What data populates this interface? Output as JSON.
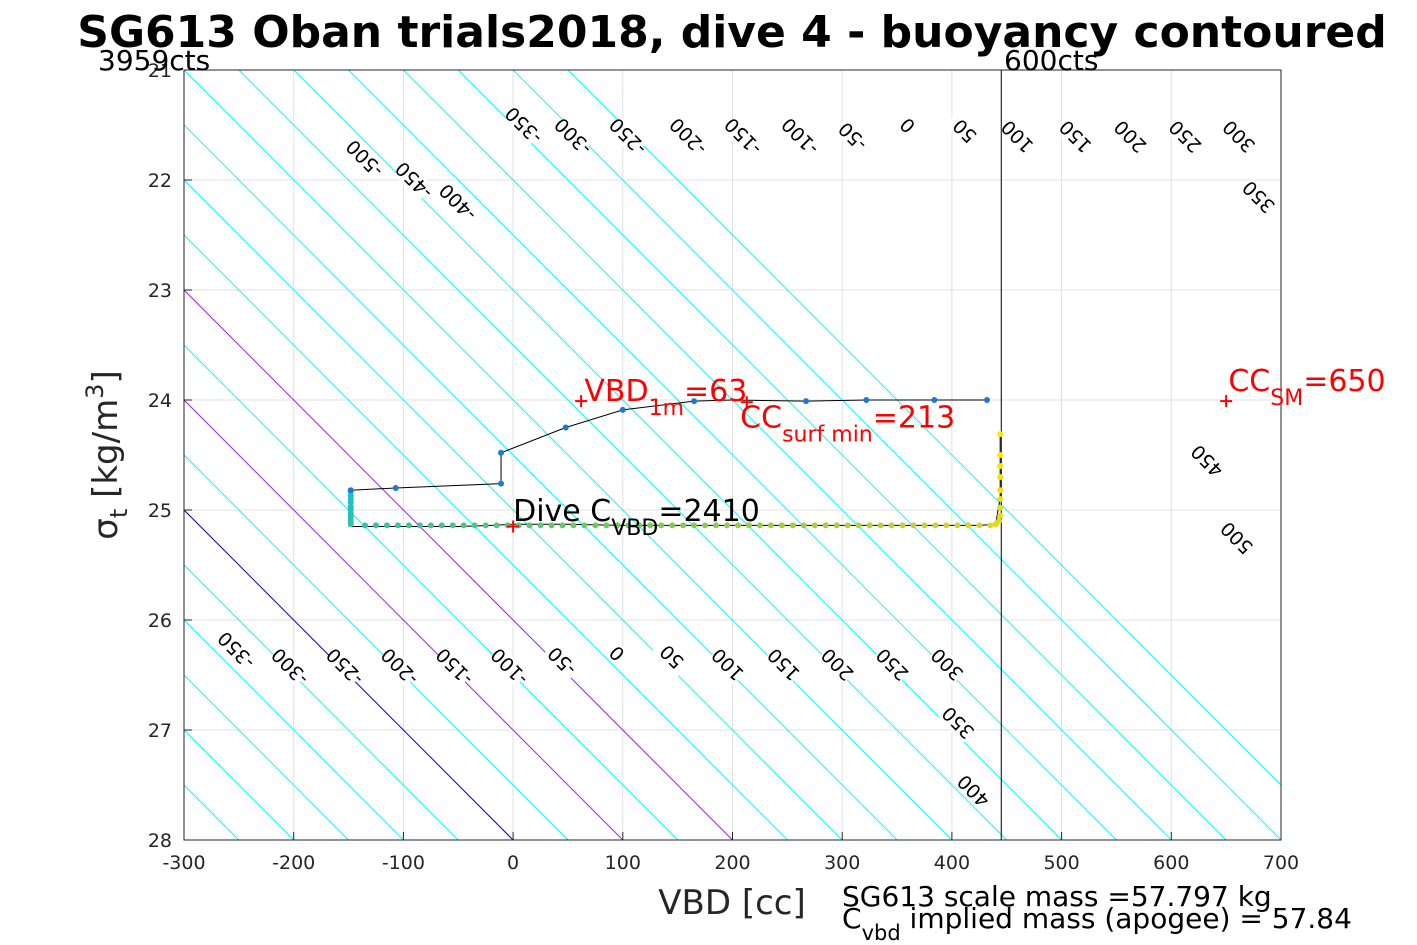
{
  "chart_data": {
    "type": "line",
    "title": "SG613 Oban trials2018, dive 4 - buoyancy contoured",
    "xlabel": "VBD [cc]",
    "ylabel": {
      "main": "σ",
      "sub": "t",
      "rest": " [kg/m",
      "sup": "3",
      "end": "]"
    },
    "xlim": [
      -300,
      700
    ],
    "ylim": [
      28,
      21
    ],
    "x_ticks": [
      "-300",
      "-200",
      "-100",
      "0",
      "100",
      "200",
      "300",
      "400",
      "500",
      "600",
      "700"
    ],
    "y_ticks": [
      "21",
      "22",
      "23",
      "24",
      "25",
      "26",
      "27",
      "28"
    ],
    "grid": true,
    "vbd_min_line": {
      "x": 445,
      "top_label": "600cts"
    },
    "vbd_max_label": "3959cts",
    "contour_slope_cc_per_sigma": 100,
    "contours": {
      "levels": [
        -650,
        -600,
        -550,
        -500,
        -450,
        -400,
        -350,
        -300,
        -250,
        -200,
        -150,
        -100,
        -50,
        0,
        50,
        100,
        150,
        200,
        250,
        300,
        350,
        400,
        450,
        500,
        550,
        600,
        650,
        700,
        750
      ],
      "colors": {
        "default": "#00ffff",
        "zero": "#0000cc",
        "highlight": "#a020f0"
      },
      "highlight_levels": [
        100,
        200
      ],
      "upper_labels": [
        {
          "text": "-500",
          "x": -135,
          "y": 21.8
        },
        {
          "text": "-450",
          "x": -90,
          "y": 22.0
        },
        {
          "text": "-400",
          "x": -50,
          "y": 22.2
        },
        {
          "text": "-350",
          "x": 10,
          "y": 21.5
        },
        {
          "text": "-300",
          "x": 55,
          "y": 21.6
        },
        {
          "text": "-250",
          "x": 105,
          "y": 21.6
        },
        {
          "text": "-200",
          "x": 160,
          "y": 21.6
        },
        {
          "text": "-150",
          "x": 210,
          "y": 21.6
        },
        {
          "text": "-100",
          "x": 262,
          "y": 21.6
        },
        {
          "text": "-50",
          "x": 310,
          "y": 21.6
        },
        {
          "text": "0",
          "x": 360,
          "y": 21.5
        },
        {
          "text": "50",
          "x": 412,
          "y": 21.55
        },
        {
          "text": "100",
          "x": 460,
          "y": 21.6
        },
        {
          "text": "150",
          "x": 513,
          "y": 21.6
        },
        {
          "text": "200",
          "x": 563,
          "y": 21.6
        },
        {
          "text": "250",
          "x": 613,
          "y": 21.6
        },
        {
          "text": "300",
          "x": 662,
          "y": 21.6
        },
        {
          "text": "350",
          "x": 680,
          "y": 22.15
        },
        {
          "text": "450",
          "x": 633,
          "y": 24.55
        },
        {
          "text": "500",
          "x": 660,
          "y": 25.25
        }
      ],
      "lower_labels": [
        {
          "text": "-350",
          "x": -252,
          "y": 26.27
        },
        {
          "text": "-300",
          "x": -203,
          "y": 26.42
        },
        {
          "text": "-250",
          "x": -153,
          "y": 26.42
        },
        {
          "text": "-200",
          "x": -103,
          "y": 26.42
        },
        {
          "text": "-150",
          "x": -53,
          "y": 26.42
        },
        {
          "text": "-100",
          "x": -3,
          "y": 26.42
        },
        {
          "text": "-50",
          "x": 45,
          "y": 26.37
        },
        {
          "text": "0",
          "x": 95,
          "y": 26.3
        },
        {
          "text": "50",
          "x": 145,
          "y": 26.33
        },
        {
          "text": "100",
          "x": 196,
          "y": 26.4
        },
        {
          "text": "150",
          "x": 247,
          "y": 26.4
        },
        {
          "text": "200",
          "x": 296,
          "y": 26.4
        },
        {
          "text": "250",
          "x": 346,
          "y": 26.4
        },
        {
          "text": "300",
          "x": 396,
          "y": 26.4
        },
        {
          "text": "350",
          "x": 406,
          "y": 26.93
        },
        {
          "text": "400",
          "x": 420,
          "y": 27.55
        }
      ]
    },
    "dive_trace": {
      "color": "#000000",
      "x": [
        -148,
        -148,
        -148,
        -148,
        -148,
        -148,
        -148,
        -148,
        -148,
        -148,
        -148,
        -148,
        -148,
        -100,
        -50,
        -20,
        0,
        50,
        100,
        150,
        200,
        250,
        300,
        350,
        400,
        425,
        440,
        442,
        444,
        444,
        444,
        444,
        444,
        444,
        444,
        444,
        444,
        444
      ],
      "y": [
        24.82,
        24.85,
        24.9,
        24.95,
        25.0,
        25.05,
        25.1,
        25.13,
        25.15,
        25.15,
        25.15,
        25.15,
        25.15,
        25.15,
        25.15,
        25.14,
        25.13,
        25.13,
        25.14,
        25.14,
        25.14,
        25.14,
        25.14,
        25.14,
        25.14,
        25.14,
        25.13,
        25.0,
        24.9,
        24.8,
        24.7,
        24.65,
        24.6,
        24.5,
        24.45,
        24.4,
        24.35,
        24.3
      ]
    },
    "climb_trace": {
      "color": "#000000",
      "x": [
        -148,
        -107,
        -11,
        -11,
        48,
        100,
        165,
        200,
        267,
        322,
        384,
        432
      ],
      "y": [
        24.82,
        24.8,
        24.76,
        24.48,
        24.25,
        24.09,
        24.01,
        24.0,
        24.01,
        24.0,
        24.0,
        24.0
      ]
    },
    "dive_points": {
      "x": [
        -148,
        -148,
        -148,
        -148,
        -148,
        -148,
        -148,
        -148,
        -148,
        -148,
        -148,
        -135,
        -125,
        -115,
        -105,
        -95,
        -85,
        -75,
        -65,
        -55,
        -45,
        -35,
        -25,
        -15,
        -5,
        5,
        15,
        25,
        35,
        45,
        55,
        65,
        75,
        85,
        95,
        105,
        115,
        125,
        135,
        145,
        155,
        165,
        175,
        185,
        195,
        205,
        215,
        225,
        235,
        245,
        255,
        265,
        275,
        285,
        295,
        305,
        315,
        325,
        335,
        345,
        355,
        365,
        375,
        385,
        395,
        405,
        415,
        425,
        435,
        440,
        443,
        444,
        444,
        444,
        444,
        444,
        444,
        444,
        444
      ],
      "y": [
        24.83,
        24.87,
        24.9,
        24.93,
        24.97,
        25.0,
        25.03,
        25.06,
        25.09,
        25.11,
        25.13,
        25.14,
        25.14,
        25.14,
        25.14,
        25.14,
        25.14,
        25.14,
        25.14,
        25.14,
        25.14,
        25.14,
        25.14,
        25.14,
        25.14,
        25.14,
        25.14,
        25.14,
        25.14,
        25.14,
        25.14,
        25.14,
        25.14,
        25.14,
        25.14,
        25.14,
        25.14,
        25.14,
        25.14,
        25.14,
        25.14,
        25.14,
        25.14,
        25.14,
        25.14,
        25.14,
        25.14,
        25.14,
        25.14,
        25.14,
        25.14,
        25.14,
        25.14,
        25.14,
        25.14,
        25.14,
        25.14,
        25.14,
        25.14,
        25.14,
        25.14,
        25.14,
        25.14,
        25.14,
        25.14,
        25.14,
        25.14,
        25.14,
        25.14,
        25.13,
        25.1,
        25.05,
        24.98,
        24.9,
        24.82,
        24.7,
        24.6,
        24.5,
        24.31
      ]
    },
    "climb_points": {
      "color": "#1f78d4",
      "x": [
        -148,
        -107,
        -11,
        -11,
        48,
        100,
        165,
        267,
        322,
        384,
        432
      ],
      "y": [
        24.82,
        24.8,
        24.76,
        24.48,
        24.25,
        24.09,
        24.01,
        24.01,
        24.0,
        24.0,
        24.0
      ]
    },
    "markers": [
      {
        "x": 62,
        "y": 24.01,
        "color": "#ff0000"
      },
      {
        "x": 650,
        "y": 24.01,
        "color": "#ff0000"
      },
      {
        "x": 0,
        "y": 25.15,
        "color": "#ff0000"
      },
      {
        "x": 213,
        "y": 24.02,
        "color": "#ff0000"
      }
    ],
    "annotations": {
      "vbd_1m": {
        "text": "VBD",
        "sub": "1m",
        "rest": "=63",
        "x": 65,
        "y": 24.01
      },
      "cc_surf_min": {
        "text": "CC",
        "sub": "surf min",
        "rest": "=213",
        "x": 207,
        "y": 24.25
      },
      "cc_sm": {
        "text": "CC",
        "sub": "SM",
        "rest": "=650",
        "x": 652,
        "y": 23.92
      },
      "dive_cvbd": {
        "text": "Dive C",
        "sub": "VBD",
        "rest": "=2410",
        "x": 0,
        "y": 25.1
      }
    },
    "footer": {
      "line1": "SG613 scale mass =57.797 kg",
      "line2_main": "C",
      "line2_sub": "vbd",
      "line2_rest": " implied mass (apogee) = 57.84"
    }
  }
}
